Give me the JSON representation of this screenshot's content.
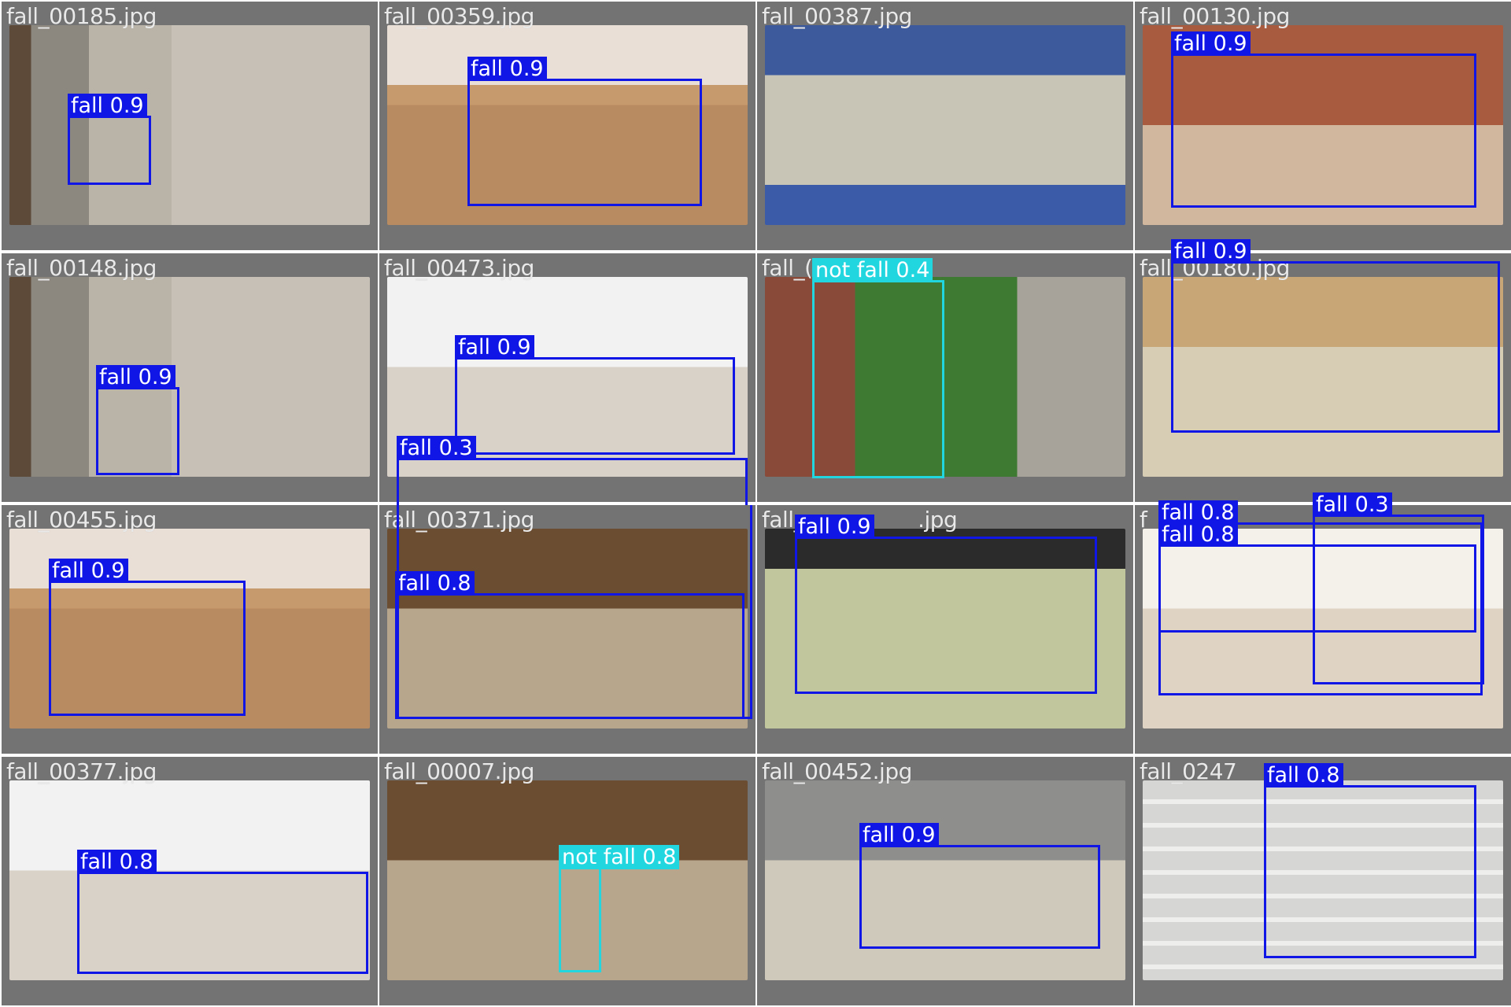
{
  "tiles": [
    {
      "file": "fall_00185.jpg",
      "detections": [
        {
          "label": "fall 0.9",
          "cls": "fall"
        }
      ]
    },
    {
      "file": "fall_00359.jpg",
      "detections": [
        {
          "label": "fall 0.9",
          "cls": "fall"
        }
      ]
    },
    {
      "file": "fall_00387.jpg",
      "detections": []
    },
    {
      "file": "fall_00130.jpg",
      "detections": [
        {
          "label": "fall 0.9",
          "cls": "fall"
        }
      ]
    },
    {
      "file": "fall_00148.jpg",
      "detections": [
        {
          "label": "fall 0.9",
          "cls": "fall"
        }
      ]
    },
    {
      "file": "fall_00473.jpg",
      "detections": [
        {
          "label": "fall 0.9",
          "cls": "fall"
        },
        {
          "label": "fall 0.3",
          "cls": "fall"
        }
      ]
    },
    {
      "file": "fall_(",
      "detections": [
        {
          "label": "not fall 0.4",
          "cls": "not fall"
        }
      ]
    },
    {
      "file": "fall_00180.jpg",
      "detections": [
        {
          "label": "fall 0.9",
          "cls": "fall"
        }
      ]
    },
    {
      "file": "fall_00455.jpg",
      "detections": [
        {
          "label": "fall 0.9",
          "cls": "fall"
        }
      ]
    },
    {
      "file": "fall_00371.jpg",
      "detections": [
        {
          "label": "fall 0.8",
          "cls": "fall"
        }
      ]
    },
    {
      "file": "fall_",
      "file_suffix": ".jpg",
      "detections": [
        {
          "label": "fall 0.9",
          "cls": "fall"
        }
      ]
    },
    {
      "file": "f",
      "detections": [
        {
          "label": "fall 0.8",
          "cls": "fall"
        },
        {
          "label": "fall 0.8",
          "cls": "fall"
        },
        {
          "label": "fall 0.3",
          "cls": "fall"
        }
      ]
    },
    {
      "file": "fall_00377.jpg",
      "detections": [
        {
          "label": "fall 0.8",
          "cls": "fall"
        }
      ]
    },
    {
      "file": "fall_00007.jpg",
      "detections": [
        {
          "label": "not fall 0.8",
          "cls": "not fall"
        }
      ]
    },
    {
      "file": "fall_00452.jpg",
      "detections": [
        {
          "label": "fall 0.9",
          "cls": "fall"
        }
      ]
    },
    {
      "file": "fall_0247",
      "detections": [
        {
          "label": "fall 0.8",
          "cls": "fall"
        }
      ]
    }
  ]
}
